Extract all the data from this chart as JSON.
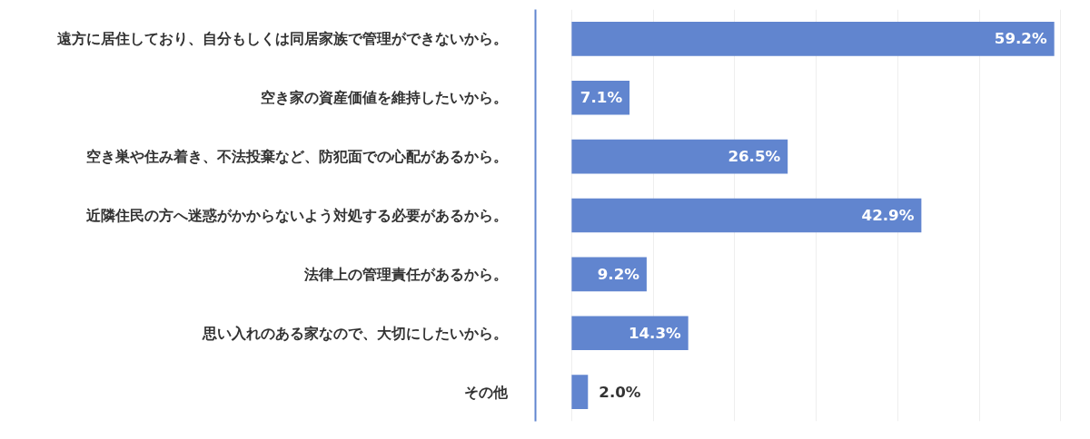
{
  "chart_data": {
    "type": "bar",
    "orientation": "horizontal",
    "categories": [
      "遠方に居住しており、自分もしくは同居家族で管理ができないから。",
      "空き家の資産価値を維持したいから。",
      "空き巣や住み着き、不法投棄など、防犯面での心配があるから。",
      "近隣住民の方へ迷惑がかからないよう対処する必要があるから。",
      "法律上の管理責任があるから。",
      "思い入れのある家なので、大切にしたいから。",
      "その他"
    ],
    "values": [
      59.2,
      7.1,
      26.5,
      42.9,
      9.2,
      14.3,
      2.0
    ],
    "value_labels": [
      "59.2%",
      "7.1%",
      "26.5%",
      "42.9%",
      "9.2%",
      "14.3%",
      "2.0%"
    ],
    "color": "#6185cf",
    "grid": "x",
    "tick_labels": "y"
  }
}
